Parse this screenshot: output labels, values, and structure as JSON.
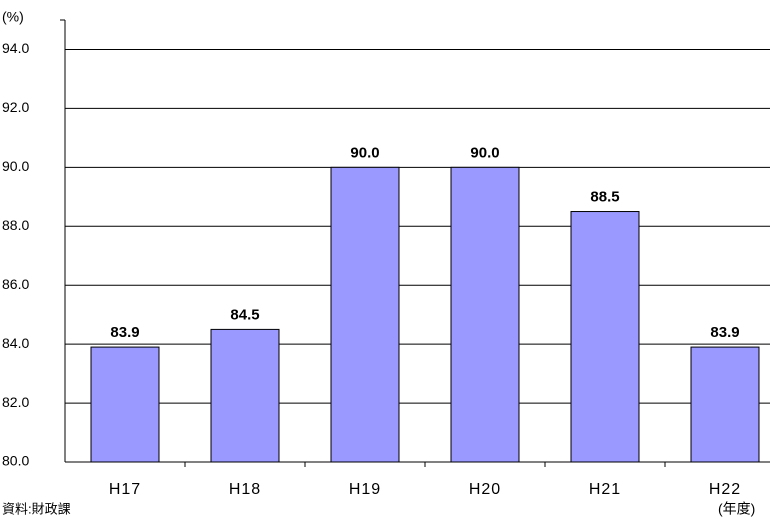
{
  "chart_data": {
    "type": "bar",
    "y_unit": "(%)",
    "x_label": "(年度)",
    "source": "資料:財政課",
    "categories": [
      "H17",
      "H18",
      "H19",
      "H20",
      "H21",
      "H22"
    ],
    "values": [
      83.9,
      84.5,
      90.0,
      90.0,
      88.5,
      83.9
    ],
    "value_labels": [
      "83.9",
      "84.5",
      "90.0",
      "90.0",
      "88.5",
      "83.9"
    ],
    "color": "#9999ff",
    "ylim": [
      80,
      95
    ],
    "yticks": [
      {
        "value": 80,
        "label": "80.0"
      },
      {
        "value": 82,
        "label": "82.0"
      },
      {
        "value": 84,
        "label": "84.0"
      },
      {
        "value": 86,
        "label": "86.0"
      },
      {
        "value": 88,
        "label": "88.0"
      },
      {
        "value": 90,
        "label": "90.0"
      },
      {
        "value": 92,
        "label": "92.0"
      },
      {
        "value": 94,
        "label": "94.0"
      }
    ],
    "grid": true
  }
}
